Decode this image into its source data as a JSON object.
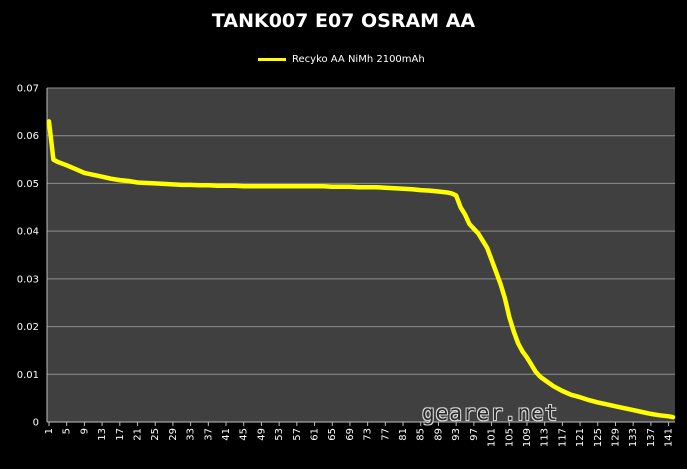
{
  "watermark": "gearer.net",
  "chart_data": {
    "type": "line",
    "title": "TANK007 E07 OSRAM AA",
    "xlabel": "",
    "ylabel": "",
    "ylim": [
      0,
      0.07
    ],
    "yticks": [
      "0",
      "0.01",
      "0.02",
      "0.03",
      "0.04",
      "0.05",
      "0.06",
      "0.07"
    ],
    "xlim": [
      1,
      142
    ],
    "xticks": [
      1,
      5,
      9,
      13,
      17,
      21,
      25,
      29,
      33,
      37,
      41,
      45,
      49,
      53,
      57,
      61,
      65,
      69,
      73,
      77,
      81,
      85,
      89,
      93,
      97,
      101,
      105,
      109,
      113,
      117,
      121,
      125,
      129,
      133,
      137,
      141
    ],
    "grid": true,
    "legend_position": "top-center",
    "background_plot": "#404040",
    "series": [
      {
        "name": "Recyko AA NiMh 2100mAh",
        "color": "#ffff00",
        "x": [
          1,
          2,
          3,
          5,
          7,
          9,
          11,
          13,
          15,
          17,
          19,
          21,
          23,
          25,
          27,
          29,
          31,
          33,
          35,
          37,
          39,
          41,
          43,
          45,
          47,
          49,
          51,
          53,
          55,
          57,
          59,
          61,
          63,
          65,
          67,
          69,
          71,
          73,
          75,
          77,
          79,
          81,
          83,
          85,
          87,
          89,
          91,
          92,
          93,
          94,
          95,
          96,
          97,
          98,
          99,
          100,
          101,
          102,
          103,
          104,
          105,
          106,
          107,
          108,
          109,
          110,
          111,
          112,
          113,
          115,
          117,
          119,
          121,
          123,
          125,
          127,
          129,
          131,
          133,
          135,
          137,
          139,
          141,
          142
        ],
        "y": [
          0.063,
          0.055,
          0.0545,
          0.0538,
          0.053,
          0.0522,
          0.0518,
          0.0514,
          0.051,
          0.0507,
          0.0505,
          0.0502,
          0.0501,
          0.05,
          0.0499,
          0.0498,
          0.0497,
          0.0497,
          0.0496,
          0.0496,
          0.0495,
          0.0495,
          0.0495,
          0.0494,
          0.0494,
          0.0494,
          0.0494,
          0.0494,
          0.0494,
          0.0494,
          0.0494,
          0.0494,
          0.0494,
          0.0493,
          0.0493,
          0.0493,
          0.0492,
          0.0492,
          0.0492,
          0.0491,
          0.049,
          0.0489,
          0.0488,
          0.0486,
          0.0485,
          0.0483,
          0.0481,
          0.0479,
          0.0475,
          0.045,
          0.0435,
          0.0415,
          0.0405,
          0.0395,
          0.038,
          0.0365,
          0.034,
          0.0315,
          0.029,
          0.026,
          0.022,
          0.019,
          0.0165,
          0.0148,
          0.0135,
          0.012,
          0.0105,
          0.0095,
          0.0088,
          0.0075,
          0.0065,
          0.0057,
          0.0052,
          0.0046,
          0.0041,
          0.0037,
          0.0033,
          0.0029,
          0.0025,
          0.0021,
          0.0017,
          0.0014,
          0.0012,
          0.001
        ]
      }
    ]
  }
}
